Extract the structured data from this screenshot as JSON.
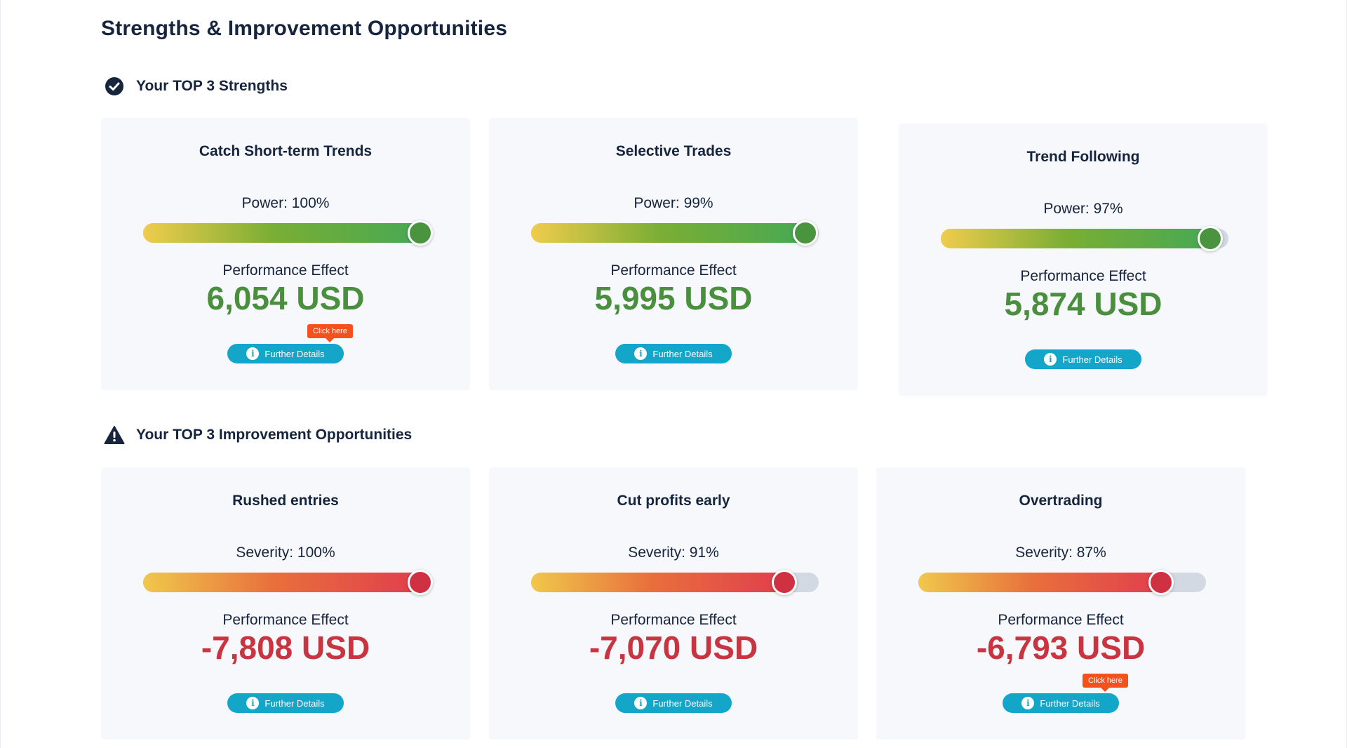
{
  "page": {
    "title": "Strengths & Improvement Opportunities"
  },
  "strengths": {
    "heading": "Your TOP 3 Strengths",
    "icon": "check-circle-icon",
    "cards": [
      {
        "title": "Catch Short-term Trends",
        "meter_label": "Power: 100%",
        "meter_percent": 100,
        "effect_label": "Performance Effect",
        "effect_value": "6,054 USD",
        "button_label": "Further Details",
        "tooltip": "Click here"
      },
      {
        "title": "Selective Trades",
        "meter_label": "Power: 99%",
        "meter_percent": 99,
        "effect_label": "Performance Effect",
        "effect_value": "5,995 USD",
        "button_label": "Further Details"
      },
      {
        "title": "Trend Following",
        "meter_label": "Power: 97%",
        "meter_percent": 97,
        "effect_label": "Performance Effect",
        "effect_value": "5,874 USD",
        "button_label": "Further Details"
      }
    ]
  },
  "improvements": {
    "heading": "Your TOP 3 Improvement Opportunities",
    "icon": "warning-triangle-icon",
    "cards": [
      {
        "title": "Rushed entries",
        "meter_label": "Severity: 100%",
        "meter_percent": 100,
        "effect_label": "Performance Effect",
        "effect_value": "-7,808 USD",
        "button_label": "Further Details"
      },
      {
        "title": "Cut profits early",
        "meter_label": "Severity: 91%",
        "meter_percent": 91,
        "effect_label": "Performance Effect",
        "effect_value": "-7,070 USD",
        "button_label": "Further Details"
      },
      {
        "title": "Overtrading",
        "meter_label": "Severity: 87%",
        "meter_percent": 87,
        "effect_label": "Performance Effect",
        "effect_value": "-6,793 USD",
        "button_label": "Further Details",
        "tooltip": "Click here"
      }
    ]
  },
  "colors": {
    "title_text": "#16253d",
    "card_background": "#f6f8fb",
    "positive": "#4a8f3e",
    "negative": "#c8343f",
    "button": "#13a6c9",
    "tooltip": "#f4511e"
  }
}
